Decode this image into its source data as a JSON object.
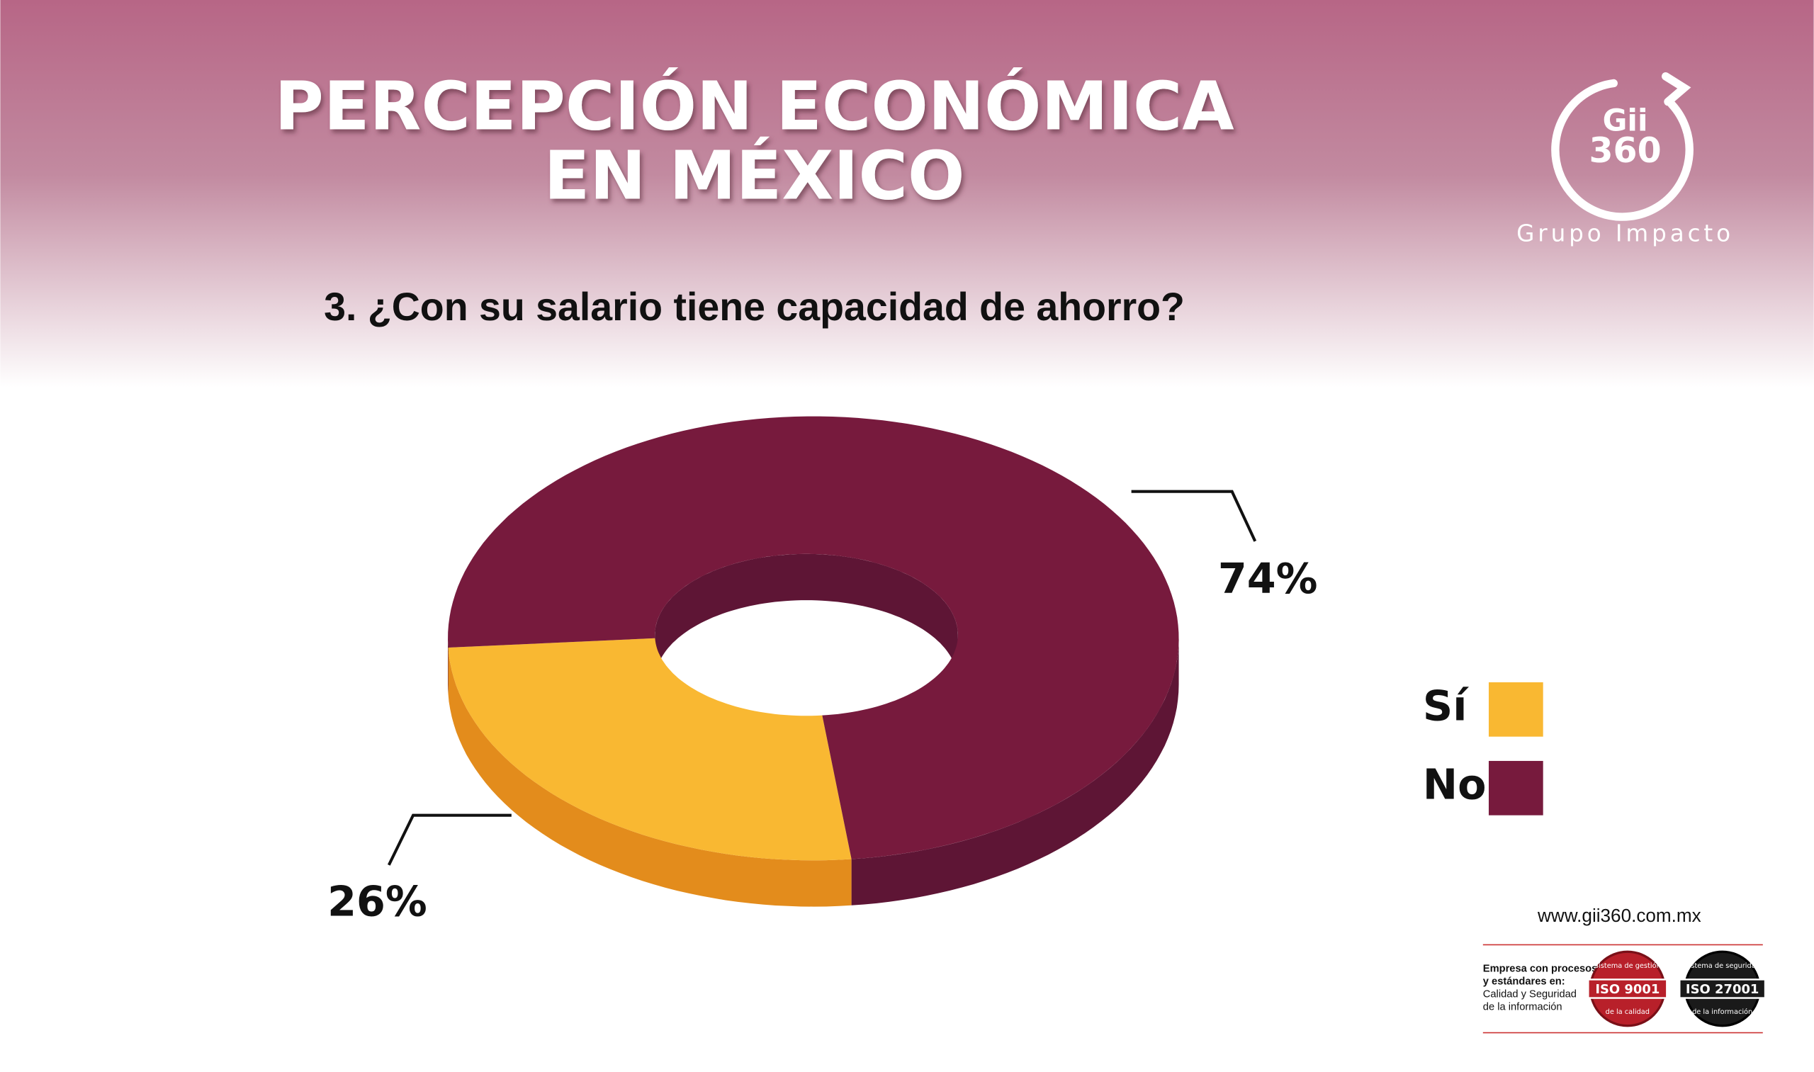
{
  "chart_data": {
    "type": "pie",
    "donut": true,
    "title": [
      "PERCEPCIÓN ECONÓMICA",
      "EN MÉXICO"
    ],
    "subtitle": "3. ¿Con su salario tiene capacidad de ahorro?",
    "categories": [
      "Sí",
      "No"
    ],
    "values": [
      26,
      74
    ],
    "value_labels": [
      "26%",
      "74%"
    ],
    "colors": [
      "#f9b832",
      "#771a3d"
    ],
    "side_colors": [
      "#e38c1c",
      "#5e1535"
    ],
    "legend": "right"
  },
  "logo": {
    "line1": "Gii",
    "line2": "360",
    "name": "Grupo Impacto"
  },
  "footer": {
    "url": "www.gii360.com.mx",
    "text": [
      "Empresa con procesos",
      "y estándares en:",
      "Calidad y Seguridad",
      "de la información"
    ],
    "badges": [
      {
        "label": "ISO 9001",
        "top": "Sistema de gestión",
        "bottom": "de la calidad"
      },
      {
        "label": "ISO 27001",
        "top": "Sistema de seguridad",
        "bottom": "de la información"
      }
    ]
  }
}
